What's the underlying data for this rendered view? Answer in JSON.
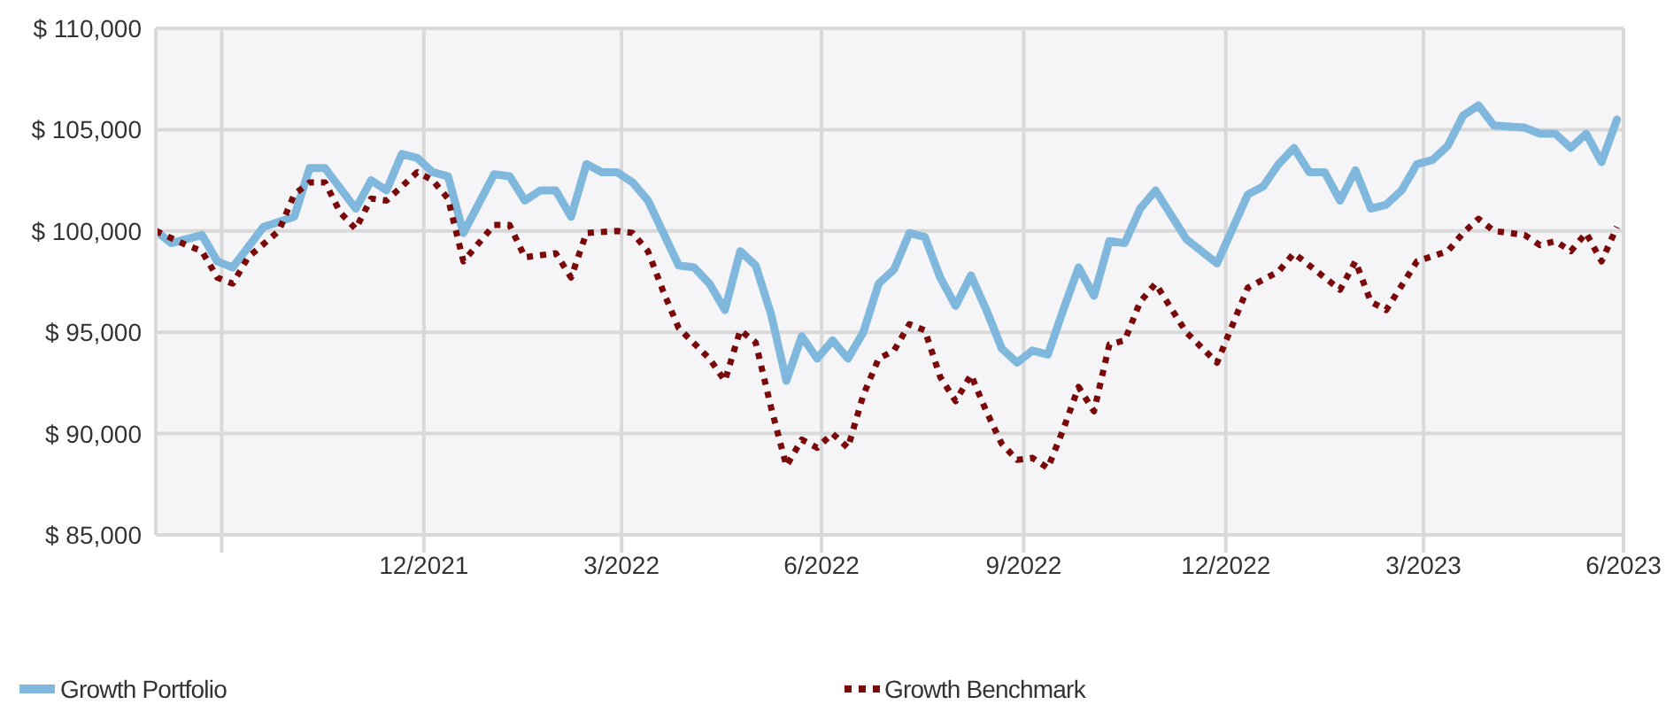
{
  "chart_data": {
    "type": "line",
    "xlim": [
      "2021-08-31",
      "2023-06-30"
    ],
    "xticks": [
      {
        "value": "2021-09-30",
        "label": null
      },
      {
        "value": "2021-12-31",
        "label": "12/2021"
      },
      {
        "value": "2022-03-31",
        "label": "3/2022"
      },
      {
        "value": "2022-06-30",
        "label": "6/2022"
      },
      {
        "value": "2022-09-30",
        "label": "9/2022"
      },
      {
        "value": "2022-12-31",
        "label": "12/2022"
      },
      {
        "value": "2023-03-31",
        "label": "3/2023"
      },
      {
        "value": "2023-06-30",
        "label": "6/2023"
      }
    ],
    "ylim": [
      85000,
      110000
    ],
    "yticks": [
      {
        "value": 85000,
        "label": "$ 85,000"
      },
      {
        "value": 90000,
        "label": "$ 90,000"
      },
      {
        "value": 95000,
        "label": "$ 95,000"
      },
      {
        "value": 100000,
        "label": "$ 100,000"
      },
      {
        "value": 105000,
        "label": "$ 105,000"
      },
      {
        "value": 110000,
        "label": "$ 110,000"
      }
    ],
    "grid": true,
    "legend": "bottom",
    "marker": "none",
    "series": [
      {
        "name": "Growth Portfolio",
        "color": "#7fb8dc",
        "line_style": "solid",
        "x": [
          "2021-08-31",
          "2021-09-07",
          "2021-09-21",
          "2021-09-28",
          "2021-10-05",
          "2021-10-19",
          "2021-11-02",
          "2021-11-09",
          "2021-11-16",
          "2021-11-30",
          "2021-12-07",
          "2021-12-14",
          "2021-12-21",
          "2021-12-28",
          "2022-01-04",
          "2022-01-11",
          "2022-01-18",
          "2022-02-01",
          "2022-02-08",
          "2022-02-15",
          "2022-02-22",
          "2022-03-01",
          "2022-03-08",
          "2022-03-15",
          "2022-03-22",
          "2022-03-29",
          "2022-04-05",
          "2022-04-12",
          "2022-04-26",
          "2022-05-03",
          "2022-05-10",
          "2022-05-17",
          "2022-05-24",
          "2022-05-31",
          "2022-06-07",
          "2022-06-14",
          "2022-06-21",
          "2022-06-28",
          "2022-07-05",
          "2022-07-12",
          "2022-07-19",
          "2022-07-26",
          "2022-08-02",
          "2022-08-09",
          "2022-08-16",
          "2022-08-23",
          "2022-08-30",
          "2022-09-06",
          "2022-09-13",
          "2022-09-20",
          "2022-09-27",
          "2022-10-04",
          "2022-10-11",
          "2022-10-18",
          "2022-10-25",
          "2022-11-01",
          "2022-11-08",
          "2022-11-15",
          "2022-11-22",
          "2022-11-29",
          "2022-12-13",
          "2022-12-27",
          "2023-01-10",
          "2023-01-17",
          "2023-01-24",
          "2023-01-31",
          "2023-02-07",
          "2023-02-14",
          "2023-02-21",
          "2023-02-28",
          "2023-03-07",
          "2023-03-14",
          "2023-03-21",
          "2023-03-28",
          "2023-04-04",
          "2023-04-11",
          "2023-04-18",
          "2023-04-25",
          "2023-05-02",
          "2023-05-16",
          "2023-05-23",
          "2023-05-30",
          "2023-06-06",
          "2023-06-13",
          "2023-06-20",
          "2023-06-27"
        ],
        "values": [
          100000,
          99400,
          99800,
          98500,
          98200,
          100200,
          100700,
          103100,
          103100,
          101100,
          102500,
          102000,
          103800,
          103600,
          102900,
          102700,
          99900,
          102800,
          102700,
          101500,
          102000,
          102000,
          100700,
          103300,
          102900,
          102900,
          102400,
          101500,
          98300,
          98200,
          97400,
          96100,
          99000,
          98300,
          95900,
          92600,
          94800,
          93700,
          94600,
          93700,
          95000,
          97400,
          98100,
          99900,
          99700,
          97700,
          96300,
          97800,
          96100,
          94200,
          93500,
          94100,
          93900,
          96100,
          98200,
          96800,
          99500,
          99400,
          101100,
          102000,
          99600,
          98400,
          101800,
          102200,
          103300,
          104100,
          102900,
          102900,
          101500,
          103000,
          101100,
          101300,
          102000,
          103300,
          103500,
          104200,
          105700,
          106200,
          105200,
          105100,
          104800,
          104800,
          104100,
          104800,
          103400,
          105500
        ]
      },
      {
        "name": "Growth Benchmark",
        "color": "#7a0a0a",
        "line_style": "dotted",
        "x": [
          "2021-08-31",
          "2021-09-14",
          "2021-09-21",
          "2021-09-28",
          "2021-10-05",
          "2021-10-12",
          "2021-10-26",
          "2021-11-02",
          "2021-11-09",
          "2021-11-16",
          "2021-11-23",
          "2021-11-30",
          "2021-12-07",
          "2021-12-14",
          "2021-12-28",
          "2022-01-04",
          "2022-01-11",
          "2022-01-18",
          "2022-02-01",
          "2022-02-08",
          "2022-02-15",
          "2022-03-01",
          "2022-03-08",
          "2022-03-15",
          "2022-03-29",
          "2022-04-05",
          "2022-04-12",
          "2022-04-19",
          "2022-04-26",
          "2022-05-10",
          "2022-05-17",
          "2022-05-24",
          "2022-05-31",
          "2022-06-07",
          "2022-06-14",
          "2022-06-21",
          "2022-06-28",
          "2022-07-05",
          "2022-07-12",
          "2022-07-19",
          "2022-07-26",
          "2022-08-02",
          "2022-08-09",
          "2022-08-16",
          "2022-08-23",
          "2022-08-30",
          "2022-09-06",
          "2022-09-13",
          "2022-09-20",
          "2022-09-27",
          "2022-10-04",
          "2022-10-11",
          "2022-10-18",
          "2022-10-25",
          "2022-11-01",
          "2022-11-08",
          "2022-11-15",
          "2022-11-22",
          "2022-11-29",
          "2022-12-13",
          "2022-12-27",
          "2023-01-10",
          "2023-01-24",
          "2023-01-31",
          "2023-02-07",
          "2023-02-14",
          "2023-02-21",
          "2023-02-28",
          "2023-03-07",
          "2023-03-14",
          "2023-03-28",
          "2023-04-11",
          "2023-04-18",
          "2023-04-25",
          "2023-05-02",
          "2023-05-16",
          "2023-05-23",
          "2023-05-30",
          "2023-06-06",
          "2023-06-13",
          "2023-06-20",
          "2023-06-27"
        ],
        "values": [
          100000,
          99300,
          99000,
          97700,
          97400,
          98700,
          100000,
          101800,
          102400,
          102400,
          100900,
          100100,
          101600,
          101500,
          102900,
          102500,
          101600,
          98500,
          100300,
          100300,
          98700,
          98900,
          97700,
          99900,
          100000,
          99900,
          99000,
          97000,
          95200,
          93700,
          92600,
          95100,
          94500,
          91300,
          88400,
          89700,
          89300,
          90000,
          89300,
          91900,
          93700,
          94100,
          95400,
          95100,
          92800,
          91600,
          92900,
          91100,
          89500,
          88700,
          88800,
          88300,
          90200,
          92300,
          91100,
          94400,
          94600,
          96500,
          97400,
          95000,
          93500,
          97200,
          98000,
          98900,
          98300,
          97700,
          97100,
          98500,
          96500,
          96100,
          98500,
          99000,
          99900,
          100600,
          100000,
          99800,
          99300,
          99500,
          99000,
          99900,
          98500,
          100200
        ]
      }
    ]
  }
}
